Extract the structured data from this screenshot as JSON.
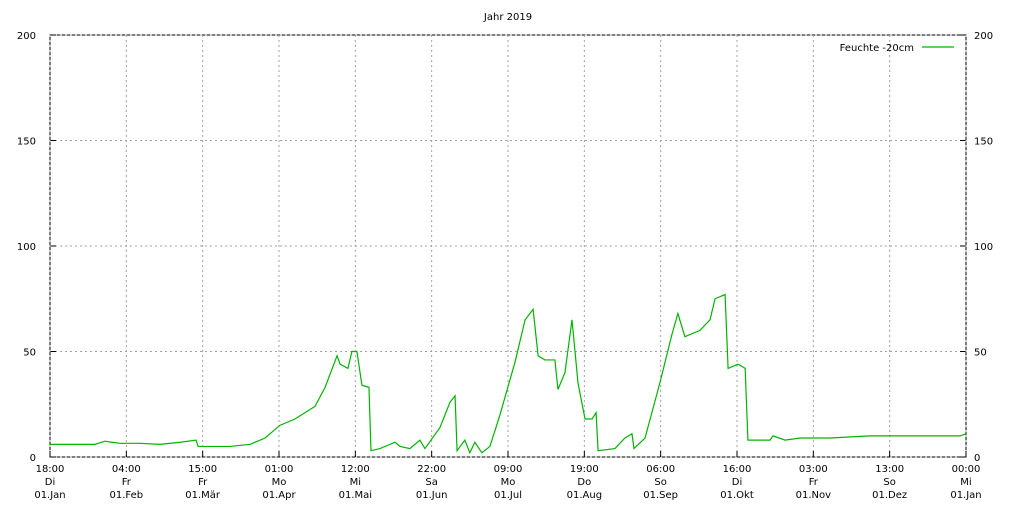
{
  "chart_data": {
    "type": "line",
    "title": "Jahr 2019",
    "xlim": [
      0,
      365
    ],
    "xticks": [
      {
        "value": 0,
        "label": "18:00\nDi\n01.Jan"
      },
      {
        "value": 30.42,
        "label": "04:00\nFr\n01.Feb"
      },
      {
        "value": 60.83,
        "label": "15:00\nFr\n01.Mär"
      },
      {
        "value": 91.25,
        "label": "01:00\nMo\n01.Apr"
      },
      {
        "value": 121.67,
        "label": "12:00\nMi\n01.Mai"
      },
      {
        "value": 152.08,
        "label": "22:00\nSa\n01.Jun"
      },
      {
        "value": 182.5,
        "label": "09:00\nMo\n01.Jul"
      },
      {
        "value": 212.92,
        "label": "19:00\nDo\n01.Aug"
      },
      {
        "value": 243.33,
        "label": "06:00\nSo\n01.Sep"
      },
      {
        "value": 273.75,
        "label": "16:00\nDi\n01.Okt"
      },
      {
        "value": 304.17,
        "label": "03:00\nFr\n01.Nov"
      },
      {
        "value": 334.58,
        "label": "13:00\nSo\n01.Dez"
      },
      {
        "value": 365,
        "label": "00:00\nMi\n01.Jan"
      }
    ],
    "ylim": [
      0,
      200
    ],
    "yticks": [
      0,
      50,
      100,
      150,
      200
    ],
    "y2lim": [
      0,
      200
    ],
    "y2ticks": [
      0,
      50,
      100,
      150,
      200
    ],
    "grid": true,
    "legend": "top-right",
    "x": [
      0,
      17.9,
      21.9,
      24.7,
      27.9,
      35.9,
      43.8,
      51.8,
      58.2,
      59.0,
      71.7,
      79.7,
      85.7,
      91.6,
      97.6,
      105.6,
      109.6,
      114.4,
      115.6,
      118.7,
      120.3,
      122.3,
      124.3,
      127.1,
      127.9,
      131.5,
      137.5,
      139.5,
      143.4,
      147.4,
      149.4,
      155.4,
      159.4,
      161.4,
      162.2,
      165.3,
      167.3,
      169.3,
      172.1,
      175.3,
      179.3,
      185.3,
      189.3,
      192.5,
      194.5,
      197.2,
      201.2,
      202.4,
      205.2,
      208.0,
      210.4,
      213.2,
      216.0,
      217.6,
      218.4,
      225.1,
      229.1,
      231.9,
      232.7,
      237.1,
      243.0,
      247.8,
      250.2,
      253.0,
      259.0,
      263.0,
      265.0,
      269.0,
      270.2,
      274.2,
      277.0,
      278.1,
      286.9,
      288.1,
      292.9,
      298.9,
      310.8,
      326.8,
      338.7,
      354.7,
      362.6,
      365
    ],
    "series": [
      {
        "name": "Feuchte -20cm",
        "color": "#00b400",
        "values": [
          6,
          6,
          7.5,
          7,
          6.5,
          6.5,
          6,
          7,
          8,
          5,
          5,
          6,
          9,
          15,
          18,
          24,
          33,
          48,
          44,
          42,
          50,
          50,
          34,
          33,
          3,
          4,
          7,
          5,
          4,
          8,
          4,
          14,
          26,
          29,
          3,
          8,
          2,
          7,
          2,
          5,
          20,
          45,
          65,
          70,
          48,
          46,
          46,
          32,
          40,
          65,
          35,
          18,
          18,
          21,
          3,
          4,
          9,
          11,
          4,
          9,
          35,
          58,
          68,
          57,
          60,
          65,
          75,
          77,
          42,
          44,
          42,
          8,
          8,
          10,
          8,
          9,
          9,
          10,
          10,
          10,
          10,
          11
        ]
      }
    ]
  }
}
